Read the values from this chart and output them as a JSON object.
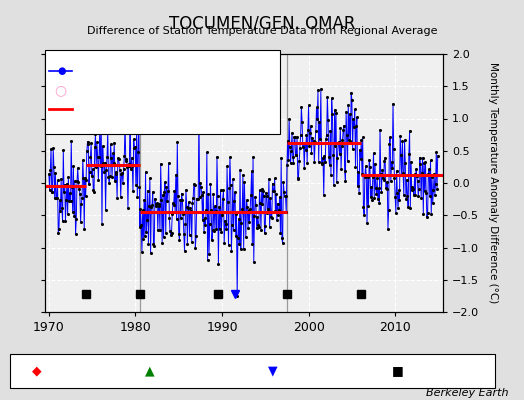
{
  "title": "TOCUMEN/GEN. OMAR",
  "subtitle": "Difference of Station Temperature Data from Regional Average",
  "ylabel": "Monthly Temperature Anomaly Difference (°C)",
  "xlabel_credit": "Berkeley Earth",
  "ylim": [
    -2,
    2
  ],
  "xlim": [
    1969.5,
    2015.5
  ],
  "xticks": [
    1970,
    1980,
    1990,
    2000,
    2010
  ],
  "yticks": [
    -2,
    -1.5,
    -1,
    -0.5,
    0,
    0.5,
    1,
    1.5,
    2
  ],
  "background_color": "#e0e0e0",
  "plot_bg_color": "#f0f0f0",
  "grid_color": "#ffffff",
  "empirical_breaks": [
    1974.3,
    1980.5,
    1989.5,
    1997.5,
    2006.0
  ],
  "obs_change_year": 1991.5,
  "bias_segments": [
    {
      "x_start": 1969.5,
      "x_end": 1974.3,
      "bias": -0.05
    },
    {
      "x_start": 1974.3,
      "x_end": 1980.5,
      "bias": 0.28
    },
    {
      "x_start": 1980.5,
      "x_end": 1997.5,
      "bias": -0.45
    },
    {
      "x_start": 1997.5,
      "x_end": 2006.0,
      "bias": 0.62
    },
    {
      "x_start": 2006.0,
      "x_end": 2015.5,
      "bias": 0.12
    }
  ],
  "vertical_lines": [
    1980.5,
    1997.5
  ],
  "segments_data": [
    [
      1970.0,
      1974.3,
      -0.05,
      0.38
    ],
    [
      1974.3,
      1980.5,
      0.28,
      0.35
    ],
    [
      1980.5,
      1997.5,
      -0.45,
      0.4
    ],
    [
      1997.5,
      2006.0,
      0.62,
      0.38
    ],
    [
      2006.0,
      2015.0,
      0.12,
      0.36
    ]
  ],
  "seed": 42
}
